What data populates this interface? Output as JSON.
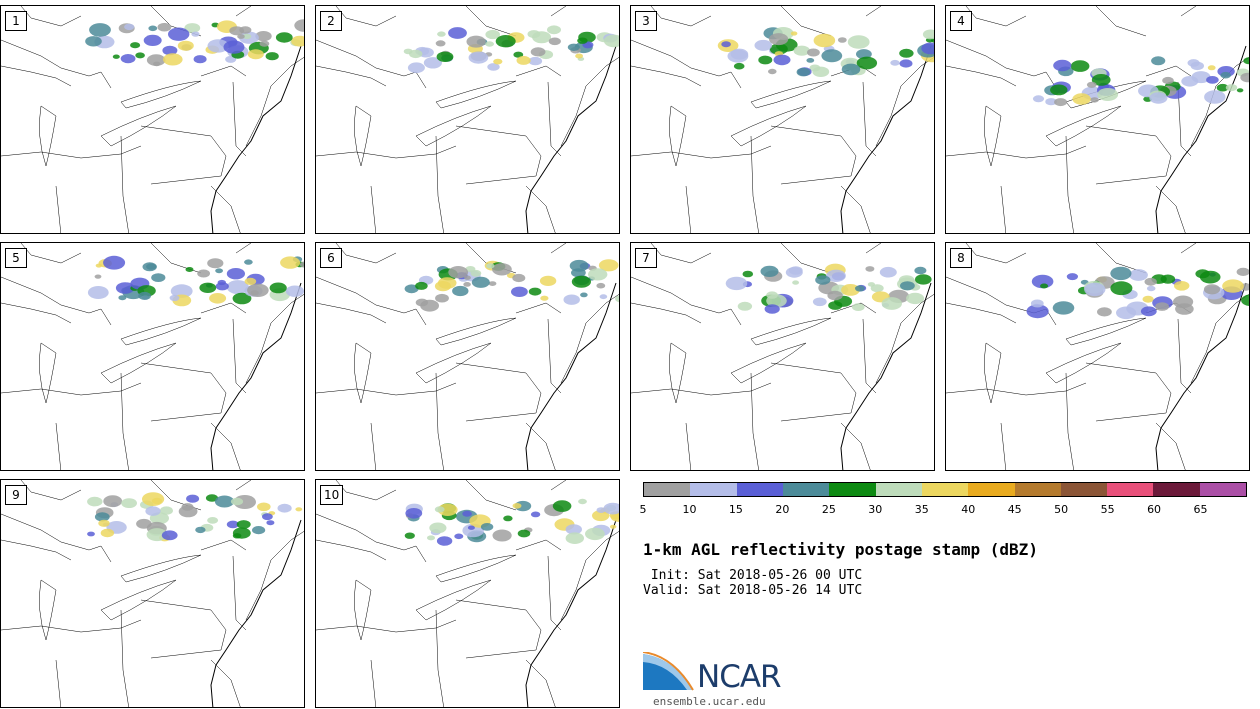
{
  "panels": [
    {
      "label": "1"
    },
    {
      "label": "2"
    },
    {
      "label": "3"
    },
    {
      "label": "4"
    },
    {
      "label": "5"
    },
    {
      "label": "6"
    },
    {
      "label": "7"
    },
    {
      "label": "8"
    },
    {
      "label": "9"
    },
    {
      "label": "10"
    }
  ],
  "colorbar": {
    "colors": [
      "#a0a0a0",
      "#b4bde8",
      "#5a5fd6",
      "#4c8b99",
      "#0d8a12",
      "#bedcbb",
      "#ecd760",
      "#e9ab1f",
      "#b47a2d",
      "#8b5536",
      "#e8507a",
      "#6c1a3a",
      "#ab4fa6"
    ],
    "ticks": [
      "5",
      "10",
      "15",
      "20",
      "25",
      "30",
      "35",
      "40",
      "45",
      "50",
      "55",
      "60",
      "65"
    ]
  },
  "title": "1-km AGL reflectivity postage stamp (dBZ)",
  "init": " Init: Sat 2018-05-26 00 UTC",
  "valid": "Valid: Sat 2018-05-26 14 UTC",
  "logo": {
    "text": "NCAR",
    "url": "ensemble.ucar.edu"
  }
}
